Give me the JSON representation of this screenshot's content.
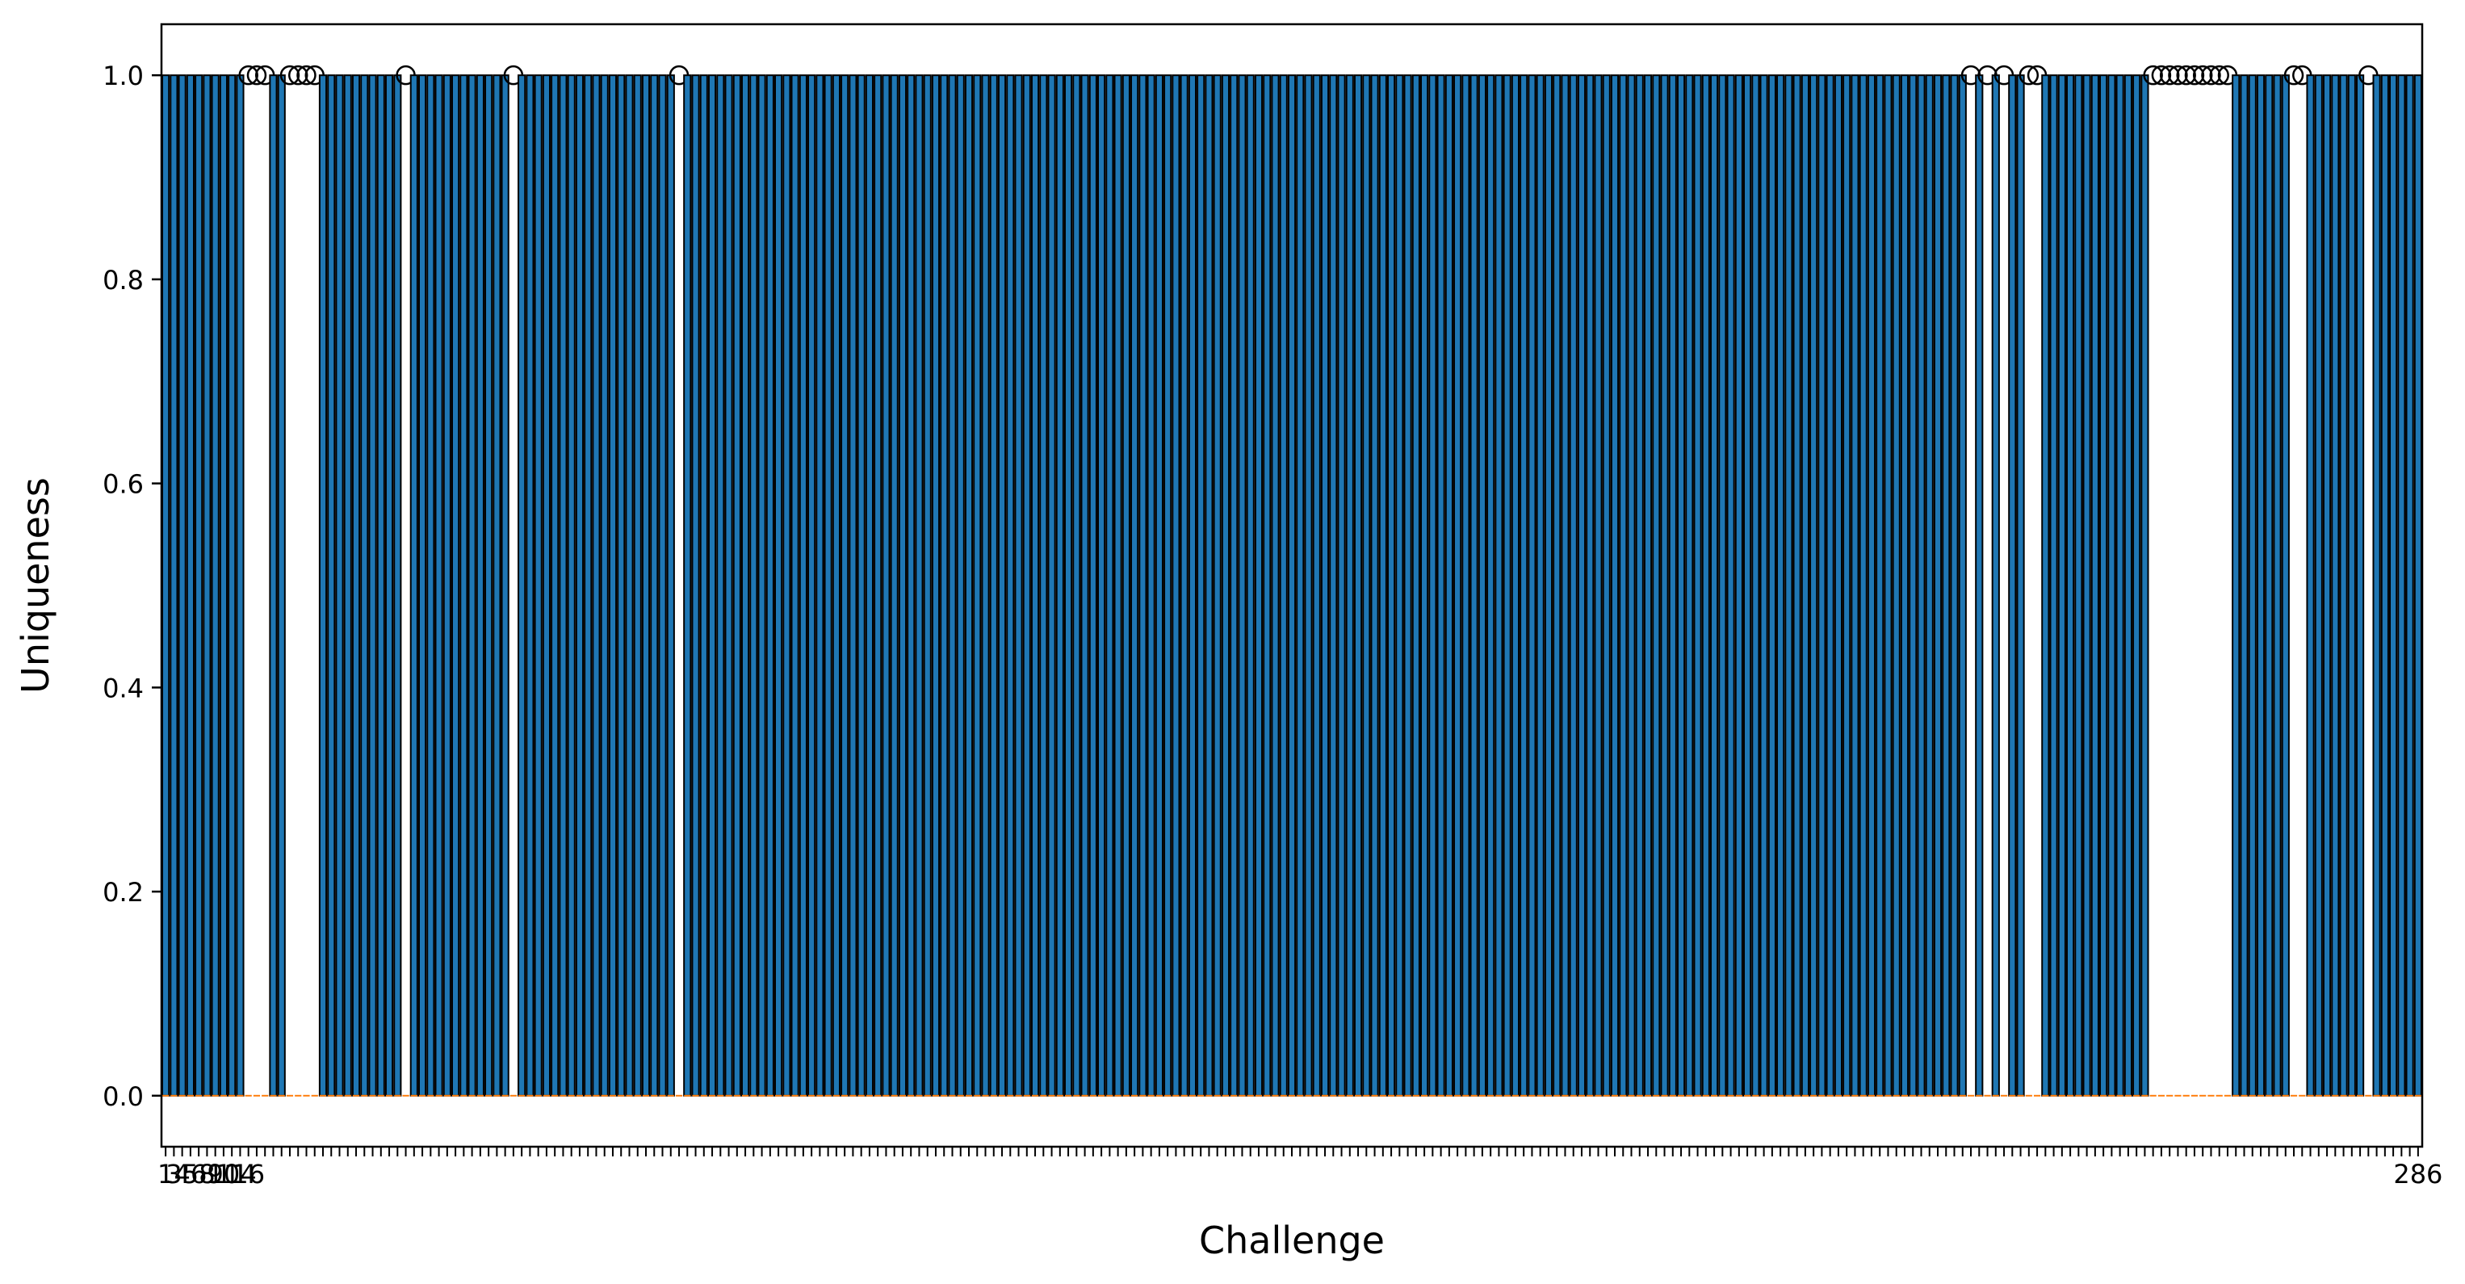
{
  "chart_data": {
    "type": "boxplot",
    "xlabel": "Challenge",
    "ylabel": "Uniqueness",
    "ylim": [
      -0.05,
      1.05
    ],
    "yticks": [
      0.0,
      0.2,
      0.4,
      0.6,
      0.8,
      1.0
    ],
    "ytick_labels": [
      "0.0",
      "0.2",
      "0.4",
      "0.6",
      "0.8",
      "1.0"
    ],
    "category_count": 273,
    "typical_box": {
      "q1": 0.0,
      "median": 0.0,
      "q3": 1.0,
      "whisker_low": 0.0,
      "whisker_high": 1.0
    },
    "collapsed_box": {
      "q1": 0.0,
      "median": 0.0,
      "q3": 0.0,
      "whisker_low": 0.0,
      "whisker_high": 0.0,
      "outliers": [
        1.0
      ]
    },
    "collapsed_box_positions": [
      10,
      11,
      12,
      15,
      16,
      17,
      18,
      29,
      42,
      62,
      218,
      220,
      222,
      225,
      226,
      240,
      241,
      242,
      243,
      244,
      245,
      246,
      247,
      248,
      249,
      257,
      258,
      266
    ],
    "first_tick_labels": [
      "1",
      "3",
      "4",
      "5",
      "6",
      "8",
      "9",
      "10",
      "11",
      "14",
      "16"
    ],
    "last_tick_label": "286",
    "grid": false,
    "colors": {
      "box_fill": "#1f77b4",
      "box_edge": "#000000",
      "median": "#ff7f0e",
      "outlier_edge": "#000000"
    }
  }
}
